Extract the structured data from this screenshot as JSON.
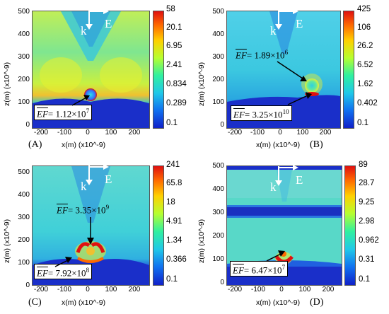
{
  "panels": [
    {
      "id": "A",
      "label": "(A)",
      "ylabel": "z(m) (x10^-9)",
      "xlabel": "x(m) (x10^-9)",
      "yticks": [
        "500",
        "400",
        "300",
        "200",
        "100",
        "0"
      ],
      "xticks": [
        "-200",
        "-100",
        "0",
        "100",
        "200"
      ],
      "colorbar": [
        "58",
        "20.1",
        "6.95",
        "2.41",
        "0.834",
        "0.289",
        "0.1"
      ],
      "k": "k",
      "E": "E",
      "ef": [
        {
          "prefix": "EF",
          "text": "= 1.12×10",
          "exp": "7",
          "boxed": true
        }
      ]
    },
    {
      "id": "B",
      "label": "(B)",
      "ylabel": "z(m) (x10^-9)",
      "xlabel": "x(m) (x10^-9)",
      "yticks": [
        "500",
        "400",
        "300",
        "200",
        "100",
        "0"
      ],
      "xticks": [
        "-200",
        "-100",
        "0",
        "100",
        "200"
      ],
      "colorbar": [
        "425",
        "106",
        "26.2",
        "6.52",
        "1.62",
        "0.402",
        "0.1"
      ],
      "k": "k",
      "E": "E",
      "ef": [
        {
          "prefix": "EF",
          "text": "= 1.89×10",
          "exp": "6",
          "boxed": false
        },
        {
          "prefix": "EF",
          "text": "= 3.25×10",
          "exp": "10",
          "boxed": true
        }
      ]
    },
    {
      "id": "C",
      "label": "(C)",
      "ylabel": "z(m) (x10^-9)",
      "xlabel": "x(m) (x10^-9)",
      "yticks": [
        "500",
        "400",
        "300",
        "200",
        "100",
        "0"
      ],
      "xticks": [
        "-200",
        "-100",
        "0",
        "100",
        "200"
      ],
      "colorbar": [
        "241",
        "65.8",
        "18",
        "4.91",
        "1.34",
        "0.366",
        "0.1"
      ],
      "k": "k",
      "E": "E",
      "ef": [
        {
          "prefix": "EF",
          "text": "= 3.35×10",
          "exp": "9",
          "boxed": false
        },
        {
          "prefix": "EF",
          "text": "= 7.92×10",
          "exp": "8",
          "boxed": true
        }
      ]
    },
    {
      "id": "D",
      "label": "(D)",
      "ylabel": "z(m) (x10^-9)",
      "xlabel": "x(m) (x10^-9)",
      "yticks": [
        "500",
        "400",
        "300",
        "200",
        "100",
        "0"
      ],
      "xticks": [
        "-200",
        "-100",
        "0",
        "100",
        "200"
      ],
      "colorbar": [
        "89",
        "28.7",
        "9.25",
        "2.98",
        "0.962",
        "0.31",
        "0.1"
      ],
      "k": "k",
      "E": "E",
      "ef": [
        {
          "prefix": "EF",
          "text": "= 6.47×10",
          "exp": "7",
          "boxed": true
        }
      ]
    }
  ],
  "colors": {
    "field_low": "#1a2fc9",
    "field_mid": "#2fd8c8",
    "field_high": "#d8f040",
    "hotspot": "#e01010"
  }
}
